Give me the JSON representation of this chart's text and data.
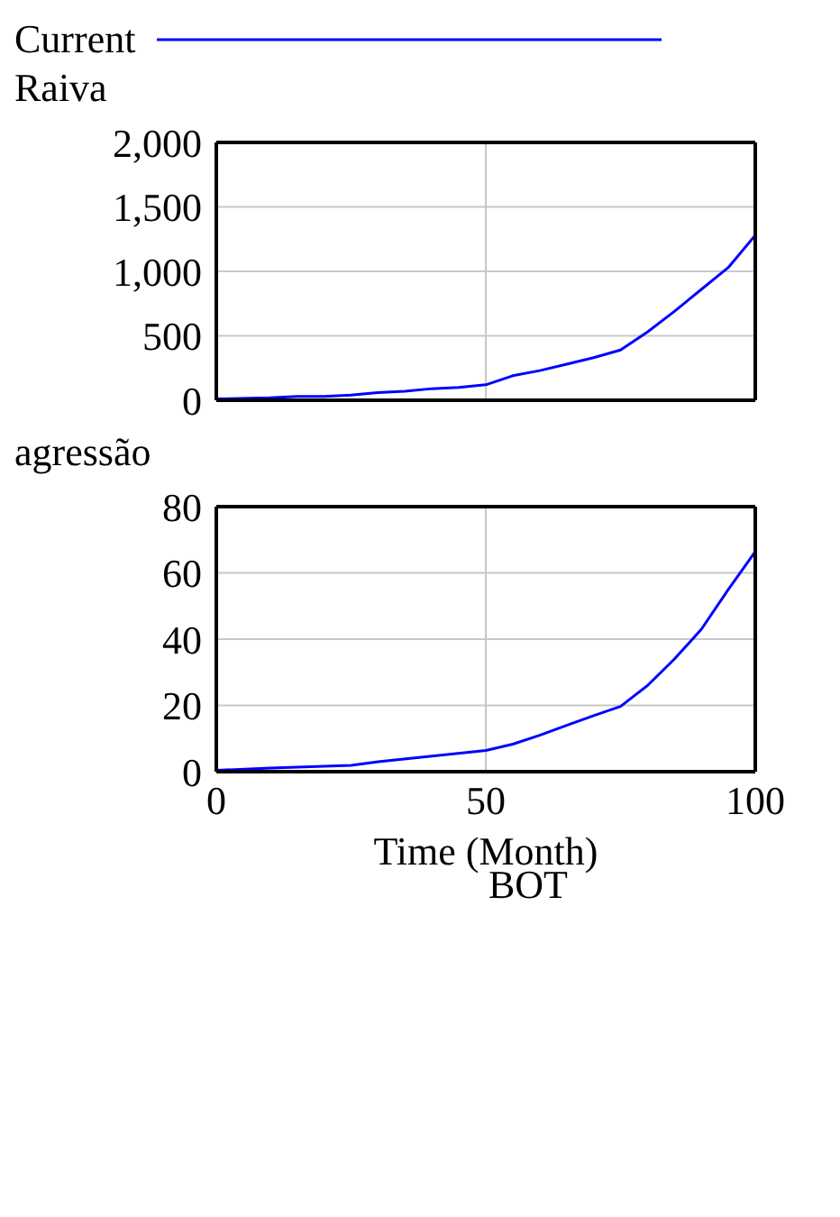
{
  "chart_data": [
    {
      "type": "line",
      "ylabel": "Raiva",
      "legend": "top",
      "grid": true,
      "tick_labels": "y",
      "xlim": [
        0,
        100
      ],
      "xticks": [
        0,
        50,
        100
      ],
      "ylim": [
        0,
        2000
      ],
      "yticks": [
        {
          "value": 0,
          "label": "0"
        },
        {
          "value": 500,
          "label": "500"
        },
        {
          "value": 1000,
          "label": "1,000"
        },
        {
          "value": 1500,
          "label": "1,500"
        },
        {
          "value": 2000,
          "label": "2,000"
        }
      ],
      "line_style": "solid",
      "marker": "none",
      "x": [
        0,
        10,
        15,
        20,
        25,
        30,
        35,
        40,
        45,
        50,
        55,
        60,
        65,
        70,
        75,
        80,
        85,
        90,
        95,
        100
      ],
      "series": [
        {
          "name": "Current",
          "color": "#0000ff",
          "values": [
            10,
            20,
            30,
            30,
            40,
            60,
            70,
            90,
            100,
            120,
            190,
            230,
            280,
            330,
            390,
            530,
            690,
            860,
            1030,
            1280
          ]
        }
      ]
    },
    {
      "type": "line",
      "ylabel": "agressão",
      "xlabel": "Time (Month)",
      "annotations": [
        "BOT"
      ],
      "grid": true,
      "xlim": [
        0,
        100
      ],
      "xticks": [
        0,
        50,
        100
      ],
      "ylim": [
        0,
        80
      ],
      "yticks": [
        0,
        20,
        40,
        60,
        80
      ],
      "line_style": "solid",
      "marker": "none",
      "x": [
        0,
        10,
        25,
        30,
        40,
        50,
        55,
        60,
        65,
        70,
        75,
        80,
        85,
        90,
        95,
        100
      ],
      "series": [
        {
          "color": "#0000ff",
          "values": [
            0.4,
            1.1,
            1.9,
            3,
            4.7,
            6.4,
            8.3,
            11,
            14,
            16.9,
            19.7,
            26,
            34,
            43,
            55,
            66.4
          ]
        }
      ]
    }
  ]
}
